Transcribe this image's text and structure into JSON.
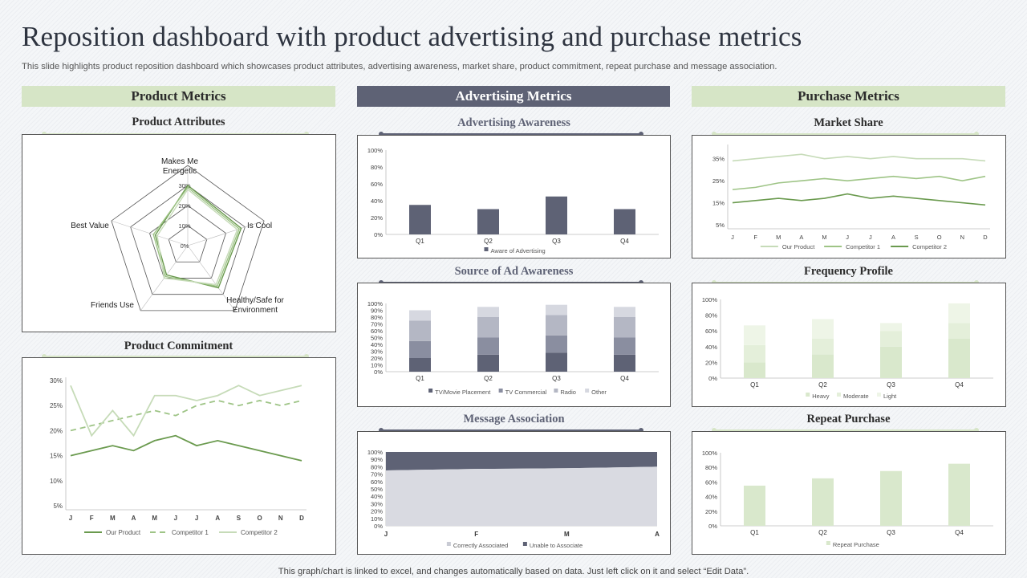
{
  "page": {
    "title": "Reposition dashboard with product advertising and purchase metrics",
    "subtitle": "This slide highlights product reposition dashboard which showcases product attributes, advertising awareness, market share, product commitment, repeat purchase and message association.",
    "footer": "This graph/chart is linked to excel, and changes automatically based on data. Just left click on it and select “Edit Data”."
  },
  "sections": {
    "product": "Product Metrics",
    "advertising": "Advertising Metrics",
    "purchase": "Purchase Metrics"
  },
  "colors": {
    "green_dark": "#6a9a4e",
    "green_mid": "#9ec486",
    "green_light": "#c6dbb8",
    "green_pale": "#e3eed8",
    "slate": "#5e6275",
    "slate_mid": "#8a8ea0",
    "slate_light": "#b4b7c4",
    "slate_pale": "#d6d8e0"
  },
  "chart_data": [
    {
      "id": "product_attributes",
      "type": "radar",
      "title": "Product Attributes",
      "axes": [
        "Makes Me Energetic",
        "Is Cool",
        "Healthy/Safe for Environment",
        "Friends Use",
        "Best Value"
      ],
      "axis_display": [
        [
          "Makes Me",
          "Energetic"
        ],
        [
          "Is Cool"
        ],
        [
          "Healthy/Safe for",
          "Environment"
        ],
        [
          "Friends Use"
        ],
        [
          "Best Value"
        ]
      ],
      "rings": [
        "0%",
        "10%",
        "20%",
        "30%"
      ],
      "max": 40,
      "series": [
        {
          "name": "Our Product",
          "values": [
            30,
            28,
            26,
            18,
            17
          ]
        },
        {
          "name": "Competitor 1",
          "values": [
            29,
            27,
            25,
            19,
            18
          ]
        },
        {
          "name": "Competitor 2",
          "values": [
            28,
            26,
            24,
            20,
            16
          ]
        }
      ]
    },
    {
      "id": "product_commitment",
      "type": "line",
      "title": "Product Commitment",
      "categories": [
        "J",
        "F",
        "M",
        "A",
        "M",
        "J",
        "J",
        "A",
        "S",
        "O",
        "N",
        "D"
      ],
      "y_ticks": [
        "5%",
        "10%",
        "15%",
        "20%",
        "25%",
        "30%"
      ],
      "ylim": [
        5,
        30
      ],
      "series": [
        {
          "name": "Our Product",
          "values": [
            15,
            16,
            17,
            16,
            18,
            19,
            17,
            18,
            17,
            16,
            15,
            14
          ]
        },
        {
          "name": "Competitor 1",
          "values": [
            20,
            21,
            22,
            23,
            24,
            23,
            25,
            26,
            25,
            26,
            25,
            26
          ]
        },
        {
          "name": "Competitor 2",
          "values": [
            29,
            19,
            24,
            19,
            27,
            27,
            26,
            27,
            29,
            27,
            28,
            29
          ]
        }
      ]
    },
    {
      "id": "advertising_awareness",
      "type": "bar",
      "title": "Advertising Awareness",
      "categories": [
        "Q1",
        "Q2",
        "Q3",
        "Q4"
      ],
      "y_ticks": [
        "0%",
        "20%",
        "40%",
        "60%",
        "80%",
        "100%"
      ],
      "ylim": [
        0,
        100
      ],
      "series": [
        {
          "name": "Aware of Advertising",
          "values": [
            35,
            30,
            45,
            30
          ]
        }
      ]
    },
    {
      "id": "source_of_ad_awareness",
      "type": "stacked-bar",
      "title": "Source of Ad Awareness",
      "categories": [
        "Q1",
        "Q2",
        "Q3",
        "Q4"
      ],
      "y_ticks": [
        "0%",
        "10%",
        "20%",
        "30%",
        "40%",
        "50%",
        "60%",
        "70%",
        "80%",
        "90%",
        "100%"
      ],
      "ylim": [
        0,
        100
      ],
      "series": [
        {
          "name": "TV/Movie Placement",
          "values": [
            20,
            25,
            28,
            25
          ]
        },
        {
          "name": "TV Commercial",
          "values": [
            25,
            25,
            25,
            25
          ]
        },
        {
          "name": "Radio",
          "values": [
            30,
            30,
            30,
            30
          ]
        },
        {
          "name": "Other",
          "values": [
            15,
            15,
            15,
            15
          ]
        }
      ]
    },
    {
      "id": "message_association",
      "type": "area",
      "title": "Message Association",
      "categories": [
        "J",
        "F",
        "M",
        "A"
      ],
      "y_ticks": [
        "0%",
        "10%",
        "20%",
        "30%",
        "40%",
        "50%",
        "60%",
        "70%",
        "80%",
        "90%",
        "100%"
      ],
      "ylim": [
        0,
        100
      ],
      "series": [
        {
          "name": "Correctly Associated",
          "values": [
            75,
            77,
            78,
            80
          ]
        },
        {
          "name": "Unable to Associate",
          "values": [
            25,
            23,
            22,
            20
          ]
        }
      ]
    },
    {
      "id": "market_share",
      "type": "line",
      "title": "Market Share",
      "categories": [
        "J",
        "F",
        "M",
        "A",
        "M",
        "J",
        "J",
        "A",
        "S",
        "O",
        "N",
        "D"
      ],
      "y_ticks": [
        "5%",
        "15%",
        "25%",
        "35%"
      ],
      "ylim": [
        5,
        40
      ],
      "series": [
        {
          "name": "Our Product",
          "values": [
            34,
            35,
            36,
            37,
            35,
            36,
            35,
            36,
            35,
            35,
            35,
            34
          ]
        },
        {
          "name": "Competitor 1",
          "values": [
            21,
            22,
            24,
            25,
            26,
            25,
            26,
            27,
            26,
            27,
            25,
            27
          ]
        },
        {
          "name": "Competitor 2",
          "values": [
            15,
            16,
            17,
            16,
            17,
            19,
            17,
            18,
            17,
            16,
            15,
            14
          ]
        }
      ]
    },
    {
      "id": "frequency_profile",
      "type": "stacked-bar",
      "title": "Frequency Profile",
      "categories": [
        "Q1",
        "Q2",
        "Q3",
        "Q4"
      ],
      "y_ticks": [
        "0%",
        "20%",
        "40%",
        "60%",
        "80%",
        "100%"
      ],
      "ylim": [
        0,
        100
      ],
      "series": [
        {
          "name": "Heavy",
          "values": [
            20,
            30,
            40,
            50
          ]
        },
        {
          "name": "Moderate",
          "values": [
            22,
            20,
            20,
            20
          ]
        },
        {
          "name": "Light",
          "values": [
            25,
            25,
            10,
            25
          ]
        }
      ]
    },
    {
      "id": "repeat_purchase",
      "type": "bar",
      "title": "Repeat Purchase",
      "categories": [
        "Q1",
        "Q2",
        "Q3",
        "Q4"
      ],
      "y_ticks": [
        "0%",
        "20%",
        "40%",
        "60%",
        "80%",
        "100%"
      ],
      "ylim": [
        0,
        100
      ],
      "series": [
        {
          "name": "Repeat Purchase",
          "values": [
            55,
            65,
            75,
            85
          ]
        }
      ]
    }
  ]
}
